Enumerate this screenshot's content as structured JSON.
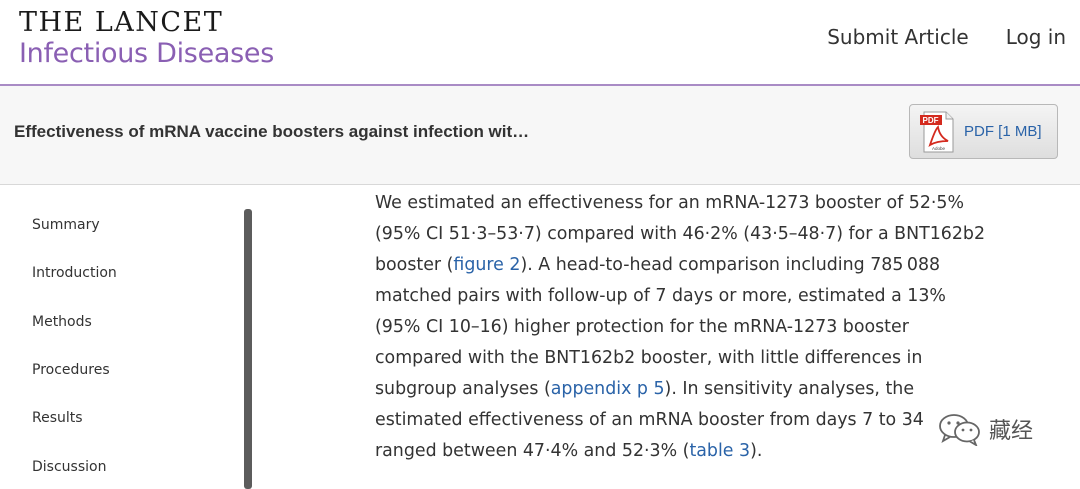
{
  "header": {
    "logo_line1": "THE LANCET",
    "logo_line2": "Infectious Diseases",
    "nav": {
      "submit": "Submit Article",
      "login": "Log in"
    }
  },
  "article_bar": {
    "title": "Effectiveness of mRNA vaccine boosters against infection wit…",
    "pdf_label": "PDF [1 MB]",
    "pdf_icon_text": "PDF",
    "pdf_icon_subtext": "Adobe"
  },
  "sidebar": {
    "items": [
      "Summary",
      "Introduction",
      "Methods",
      "Procedures",
      "Results",
      "Discussion"
    ]
  },
  "main": {
    "l1": "We estimated an effectiveness for an mRNA-1273 booster of 52·5%",
    "l2": "(95% CI 51·3–53·7) compared with 46·2% (43·5–48·7) for a BNT162b2",
    "l3_a": "booster (",
    "l3_link": "figure 2",
    "l3_b": "). A head-to-head comparison including 785 088",
    "l4": "matched pairs with follow-up of 7 days or more, estimated a 13%",
    "l5": "(95% CI 10–16) higher protection for the mRNA-1273 booster",
    "l6": "compared with the BNT162b2 booster, with little differences in",
    "l7_a": "subgroup analyses (",
    "l7_link": "appendix p 5",
    "l7_b": "). In sensitivity analyses, the",
    "l8": "estimated effectiveness of an mRNA booster from days 7 to 34",
    "l9_a": "ranged between 47·4% and 52·3% (",
    "l9_link": "table 3",
    "l9_b": ")."
  },
  "watermark": {
    "text": "藏经"
  },
  "colors": {
    "brand_purple": "#8a5fb3",
    "link_blue": "#2a63a8"
  }
}
